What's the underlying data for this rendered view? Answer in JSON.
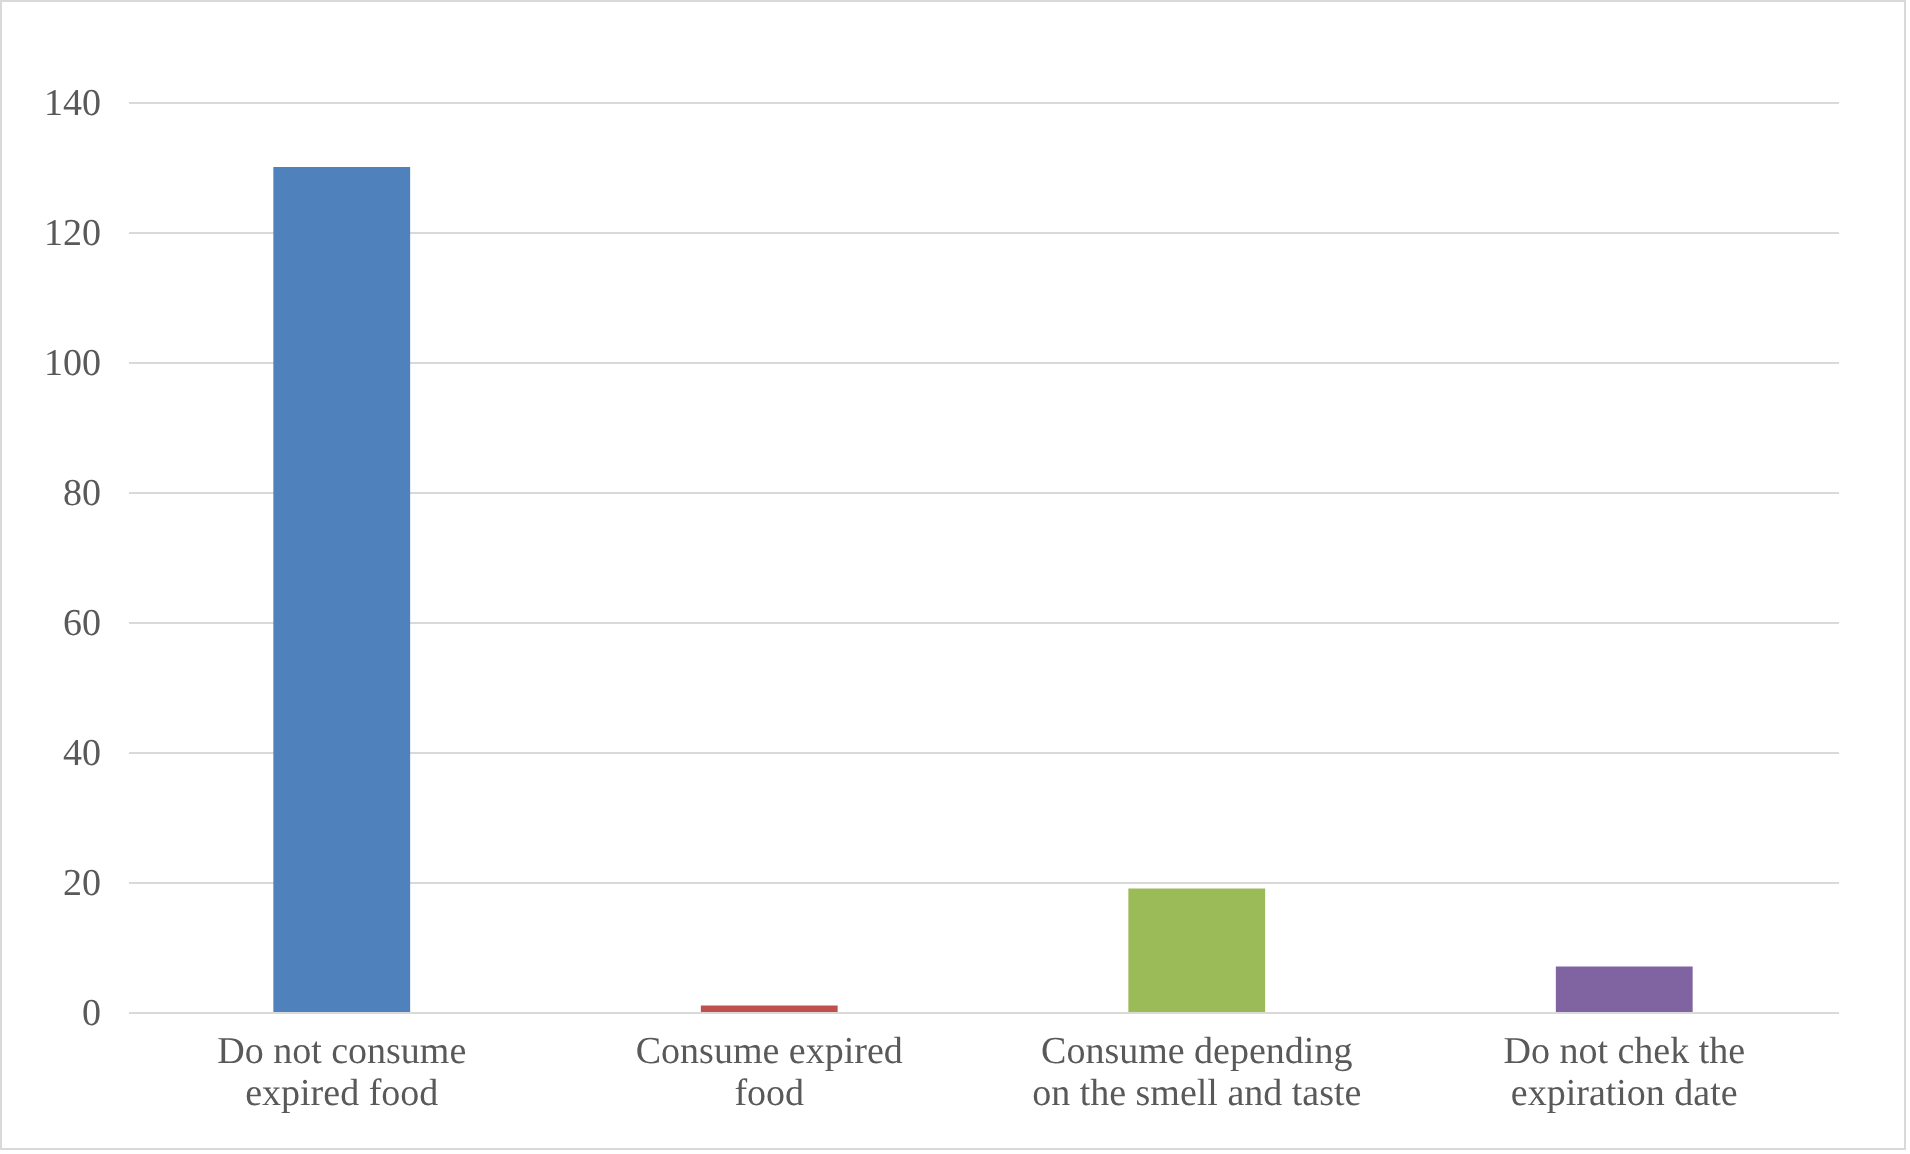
{
  "chart_data": {
    "type": "bar",
    "categories": [
      "Do not consume expired food",
      "Consume expired food",
      "Consume depending on the smell and taste",
      "Do not chek the expiration date"
    ],
    "values": [
      130,
      1,
      19,
      7
    ],
    "colors": [
      "#4f81bd",
      "#c0504d",
      "#9bbb59",
      "#8064a2"
    ],
    "ylim": [
      0,
      140
    ],
    "yticks": [
      0,
      20,
      40,
      60,
      80,
      100,
      120,
      140
    ],
    "grid": "y"
  }
}
